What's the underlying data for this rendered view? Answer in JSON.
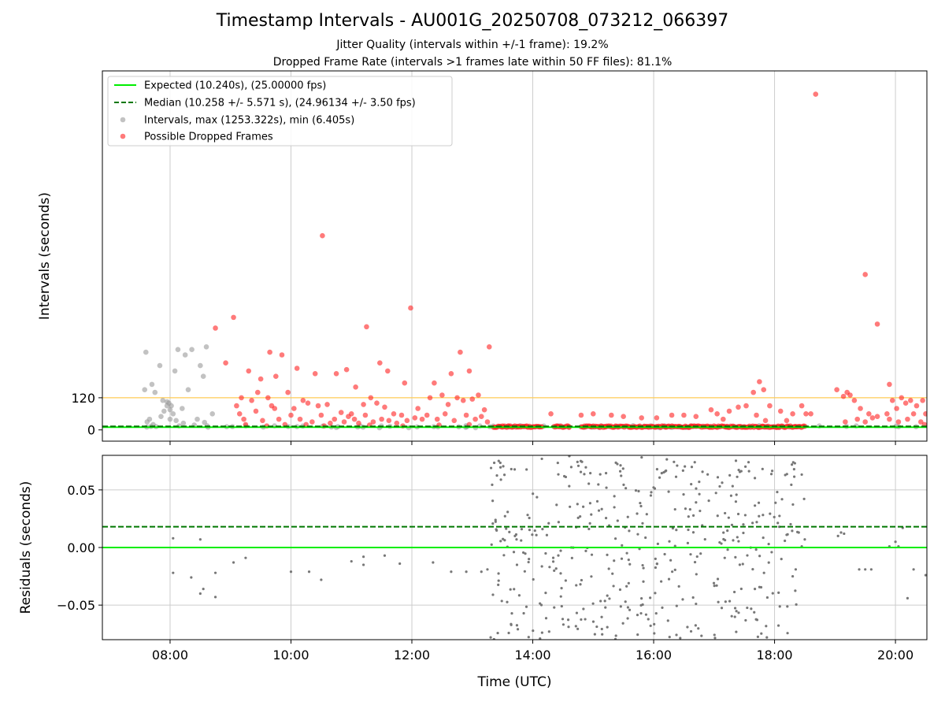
{
  "figure": {
    "title": "Timestamp Intervals - AU001G_20250708_073212_066397",
    "subtitle_jitter": "Jitter Quality (intervals within +/-1 frame): 19.2%",
    "subtitle_dropped": "Dropped Frame Rate (intervals >1 frames late within 50 FF files): 81.1%"
  },
  "colors": {
    "expected": "#00ee00",
    "median": "#007700",
    "interval_points": "#999999",
    "dropped_points": "#ff2222",
    "threshold_line": "#ffcc55",
    "residual_points": "#777777",
    "grid": "#cccccc"
  },
  "chart_data": [
    {
      "id": "intervals",
      "type": "scatter",
      "ylabel": "Intervals (seconds)",
      "xlim": [
        6.88,
        20.52
      ],
      "ylim": [
        -42,
        1340
      ],
      "x_ticks": [
        8,
        10,
        12,
        14,
        16,
        18,
        20
      ],
      "x_tick_labels": [
        "08:00",
        "10:00",
        "12:00",
        "14:00",
        "16:00",
        "18:00",
        "20:00"
      ],
      "y_ticks": [
        0,
        120
      ],
      "y_tick_labels": [
        "0",
        "120"
      ],
      "grid": "vertical",
      "legend": {
        "placement": "top-left",
        "entries": [
          "Expected (10.240s), (25.00000 fps)",
          "Median (10.258 +/- 5.571 s), (24.96134 +/- 3.50 fps)",
          "Intervals, max (1253.322s), min (6.405s)",
          "Possible Dropped Frames"
        ]
      },
      "expected_y": 10.24,
      "median_y": 10.258,
      "threshold_y": 120,
      "normal_intervals": [
        [
          7.6,
          290
        ],
        [
          7.58,
          150
        ],
        [
          7.7,
          170
        ],
        [
          7.75,
          140
        ],
        [
          7.83,
          240
        ],
        [
          7.88,
          110
        ],
        [
          7.9,
          70
        ],
        [
          7.95,
          90
        ],
        [
          7.98,
          100
        ],
        [
          8.02,
          90
        ],
        [
          8.05,
          60
        ],
        [
          8.08,
          220
        ],
        [
          8.13,
          300
        ],
        [
          8.2,
          80
        ],
        [
          8.25,
          280
        ],
        [
          8.3,
          150
        ],
        [
          8.36,
          300
        ],
        [
          8.45,
          40
        ],
        [
          8.5,
          240
        ],
        [
          8.55,
          200
        ],
        [
          8.6,
          310
        ],
        [
          8.7,
          60
        ],
        [
          7.62,
          30
        ],
        [
          7.72,
          20
        ],
        [
          7.85,
          50
        ],
        [
          8.0,
          40
        ],
        [
          8.1,
          35
        ],
        [
          8.22,
          25
        ],
        [
          8.4,
          18
        ],
        [
          8.57,
          28
        ],
        [
          7.95,
          105
        ],
        [
          8.0,
          75
        ],
        [
          7.66,
          40
        ],
        [
          8.15,
          15
        ]
      ],
      "dropped_frames": [
        [
          18.68,
          1253
        ],
        [
          10.52,
          725
        ],
        [
          11.98,
          455
        ],
        [
          19.5,
          580
        ],
        [
          9.05,
          420
        ],
        [
          8.75,
          380
        ],
        [
          11.25,
          385
        ],
        [
          13.28,
          310
        ],
        [
          19.7,
          395
        ],
        [
          12.8,
          290
        ],
        [
          8.92,
          250
        ],
        [
          9.65,
          290
        ],
        [
          9.85,
          280
        ],
        [
          9.3,
          220
        ],
        [
          9.5,
          190
        ],
        [
          9.75,
          200
        ],
        [
          10.1,
          230
        ],
        [
          10.4,
          210
        ],
        [
          10.75,
          210
        ],
        [
          10.92,
          225
        ],
        [
          11.07,
          160
        ],
        [
          11.47,
          250
        ],
        [
          11.6,
          220
        ],
        [
          11.88,
          175
        ],
        [
          12.37,
          175
        ],
        [
          12.65,
          210
        ],
        [
          12.95,
          220
        ],
        [
          17.75,
          180
        ],
        [
          17.65,
          140
        ],
        [
          17.82,
          150
        ],
        [
          19.03,
          150
        ],
        [
          19.14,
          125
        ],
        [
          19.2,
          140
        ],
        [
          19.25,
          130
        ],
        [
          19.9,
          170
        ],
        [
          9.18,
          120
        ],
        [
          9.35,
          110
        ],
        [
          9.45,
          140
        ],
        [
          9.62,
          120
        ],
        [
          9.73,
          80
        ],
        [
          9.95,
          140
        ],
        [
          10.2,
          110
        ],
        [
          10.28,
          100
        ],
        [
          10.45,
          90
        ],
        [
          10.6,
          95
        ],
        [
          10.83,
          65
        ],
        [
          11.0,
          60
        ],
        [
          11.2,
          95
        ],
        [
          11.32,
          120
        ],
        [
          11.42,
          100
        ],
        [
          11.55,
          85
        ],
        [
          11.7,
          60
        ],
        [
          11.83,
          55
        ],
        [
          12.1,
          80
        ],
        [
          12.3,
          120
        ],
        [
          12.5,
          130
        ],
        [
          12.6,
          95
        ],
        [
          12.75,
          120
        ],
        [
          12.85,
          110
        ],
        [
          13.0,
          115
        ],
        [
          13.1,
          130
        ],
        [
          13.2,
          75
        ],
        [
          9.1,
          90
        ],
        [
          9.15,
          60
        ],
        [
          9.22,
          40
        ],
        [
          9.42,
          70
        ],
        [
          9.53,
          35
        ],
        [
          9.68,
          90
        ],
        [
          9.8,
          40
        ],
        [
          9.9,
          20
        ],
        [
          10.0,
          55
        ],
        [
          10.05,
          80
        ],
        [
          10.15,
          40
        ],
        [
          10.35,
          30
        ],
        [
          10.5,
          55
        ],
        [
          10.65,
          25
        ],
        [
          10.72,
          40
        ],
        [
          10.88,
          30
        ],
        [
          10.95,
          50
        ],
        [
          11.05,
          40
        ],
        [
          11.12,
          25
        ],
        [
          11.23,
          55
        ],
        [
          11.36,
          30
        ],
        [
          11.5,
          40
        ],
        [
          11.62,
          35
        ],
        [
          11.75,
          25
        ],
        [
          11.92,
          35
        ],
        [
          12.05,
          45
        ],
        [
          12.17,
          40
        ],
        [
          12.25,
          55
        ],
        [
          12.42,
          40
        ],
        [
          12.55,
          60
        ],
        [
          12.7,
          35
        ],
        [
          12.9,
          55
        ],
        [
          13.05,
          40
        ],
        [
          13.15,
          50
        ],
        [
          13.25,
          30
        ],
        [
          9.25,
          20
        ],
        [
          9.6,
          15
        ],
        [
          10.25,
          20
        ],
        [
          10.55,
          15
        ],
        [
          11.3,
          18
        ],
        [
          11.85,
          15
        ],
        [
          12.45,
          18
        ],
        [
          12.95,
          20
        ],
        [
          15.0,
          60
        ],
        [
          15.3,
          55
        ],
        [
          15.5,
          50
        ],
        [
          16.3,
          55
        ],
        [
          16.7,
          50
        ],
        [
          16.95,
          75
        ],
        [
          17.05,
          60
        ],
        [
          17.25,
          70
        ],
        [
          17.4,
          85
        ],
        [
          17.53,
          90
        ],
        [
          17.7,
          55
        ],
        [
          17.92,
          90
        ],
        [
          18.1,
          70
        ],
        [
          18.3,
          60
        ],
        [
          18.45,
          90
        ],
        [
          18.52,
          60
        ],
        [
          18.6,
          60
        ],
        [
          19.32,
          110
        ],
        [
          19.42,
          80
        ],
        [
          19.56,
          60
        ],
        [
          19.7,
          50
        ],
        [
          19.86,
          60
        ],
        [
          19.95,
          110
        ],
        [
          20.02,
          80
        ],
        [
          20.1,
          120
        ],
        [
          20.17,
          100
        ],
        [
          20.25,
          110
        ],
        [
          20.35,
          90
        ],
        [
          20.45,
          110
        ],
        [
          20.5,
          60
        ],
        [
          19.17,
          30
        ],
        [
          19.37,
          40
        ],
        [
          19.5,
          30
        ],
        [
          19.62,
          45
        ],
        [
          19.9,
          40
        ],
        [
          20.05,
          30
        ],
        [
          20.2,
          40
        ],
        [
          20.3,
          60
        ],
        [
          20.42,
          30
        ],
        [
          20.48,
          20
        ],
        [
          14.3,
          60
        ],
        [
          14.8,
          55
        ],
        [
          15.8,
          45
        ],
        [
          16.05,
          45
        ],
        [
          16.5,
          55
        ],
        [
          17.15,
          40
        ],
        [
          17.85,
          35
        ],
        [
          18.2,
          35
        ],
        [
          13.5,
          15
        ],
        [
          13.6,
          15
        ],
        [
          13.75,
          12
        ],
        [
          13.9,
          15
        ],
        [
          14.1,
          12
        ],
        [
          14.4,
          12
        ],
        [
          14.6,
          12
        ],
        [
          14.95,
          12
        ],
        [
          15.2,
          12
        ],
        [
          15.6,
          12
        ],
        [
          15.9,
          12
        ],
        [
          16.2,
          12
        ],
        [
          16.6,
          12
        ],
        [
          16.9,
          12
        ],
        [
          17.2,
          12
        ],
        [
          17.5,
          12
        ],
        [
          17.8,
          12
        ],
        [
          18.05,
          12
        ],
        [
          18.35,
          12
        ]
      ],
      "dropped_dense_bands": [
        [
          13.35,
          14.15,
          12
        ],
        [
          14.35,
          14.6,
          12
        ],
        [
          14.8,
          18.5,
          12
        ]
      ]
    },
    {
      "id": "residuals",
      "type": "scatter",
      "ylabel": "Residuals (seconds)",
      "xlabel": "Time (UTC)",
      "xlim": [
        6.88,
        20.52
      ],
      "ylim": [
        -0.08,
        0.08
      ],
      "x_ticks": [
        8,
        10,
        12,
        14,
        16,
        18,
        20
      ],
      "x_tick_labels": [
        "08:00",
        "10:00",
        "12:00",
        "14:00",
        "16:00",
        "18:00",
        "20:00"
      ],
      "y_ticks": [
        -0.05,
        0.0,
        0.05
      ],
      "y_tick_labels": [
        "−0.05",
        "0.00",
        "0.05"
      ],
      "grid": "both",
      "expected_y": 0.0,
      "median_y": 0.018,
      "residual_points": [
        [
          8.05,
          0.008
        ],
        [
          8.05,
          -0.022
        ],
        [
          8.35,
          -0.026
        ],
        [
          8.5,
          -0.04
        ],
        [
          8.55,
          -0.036
        ],
        [
          8.75,
          -0.043
        ],
        [
          8.5,
          0.007
        ],
        [
          8.75,
          -0.022
        ],
        [
          9.05,
          -0.013
        ],
        [
          9.25,
          -0.009
        ],
        [
          10.0,
          -0.021
        ],
        [
          10.3,
          -0.021
        ],
        [
          10.5,
          -0.028
        ],
        [
          11.0,
          -0.012
        ],
        [
          11.2,
          -0.008
        ],
        [
          11.2,
          -0.015
        ],
        [
          11.55,
          -0.007
        ],
        [
          11.8,
          -0.014
        ],
        [
          12.35,
          -0.013
        ],
        [
          12.65,
          -0.021
        ],
        [
          12.9,
          -0.021
        ],
        [
          13.15,
          -0.021
        ],
        [
          13.25,
          -0.019
        ],
        [
          19.05,
          0.01
        ],
        [
          19.1,
          0.013
        ],
        [
          19.15,
          0.012
        ],
        [
          19.4,
          -0.019
        ],
        [
          19.5,
          -0.019
        ],
        [
          19.6,
          -0.019
        ],
        [
          19.9,
          0.001
        ],
        [
          20.0,
          0.005
        ],
        [
          20.05,
          0.001
        ],
        [
          20.12,
          0.017
        ],
        [
          20.2,
          -0.044
        ],
        [
          20.3,
          -0.019
        ],
        [
          20.5,
          -0.024
        ],
        [
          18.4,
          0.013
        ],
        [
          18.45,
          0.001
        ],
        [
          18.5,
          0.007
        ],
        [
          18.2,
          0.011
        ],
        [
          18.3,
          -0.025
        ],
        [
          18.35,
          -0.019
        ]
      ],
      "residual_scatter_band": {
        "x_range": [
          13.3,
          18.5
        ],
        "y_range": [
          -0.08,
          0.08
        ],
        "count": 430
      }
    }
  ]
}
